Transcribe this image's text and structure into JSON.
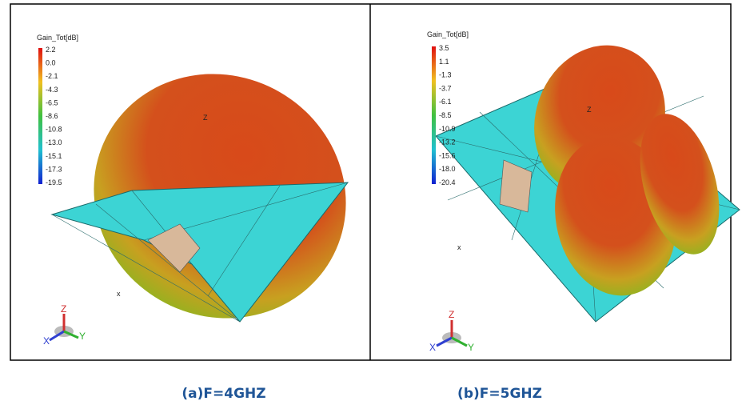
{
  "panels": [
    {
      "legend_title": "Gain_Tot[dB]",
      "scale_labels": [
        "2.2",
        "0.0",
        "-2.1",
        "-4.3",
        "-6.5",
        "-8.6",
        "-10.8",
        "-13.0",
        "-15.1",
        "-17.3",
        "-19.5"
      ],
      "lobe_axis": "Z",
      "plate_axis": "x",
      "triad": [
        "Z",
        "X",
        "Y"
      ],
      "caption": "(a)F=4GHZ"
    },
    {
      "legend_title": "Gain_Tot[dB]",
      "scale_labels": [
        "3.5",
        "1.1",
        "-1.3",
        "-3.7",
        "-6.1",
        "-8.5",
        "-10.9",
        "-13.2",
        "-15.6",
        "-18.0",
        "-20.4"
      ],
      "lobe_axis": "Z",
      "plate_axis": "x",
      "triad": [
        "Z",
        "X",
        "Y"
      ],
      "caption": "(b)F=5GHZ"
    }
  ]
}
